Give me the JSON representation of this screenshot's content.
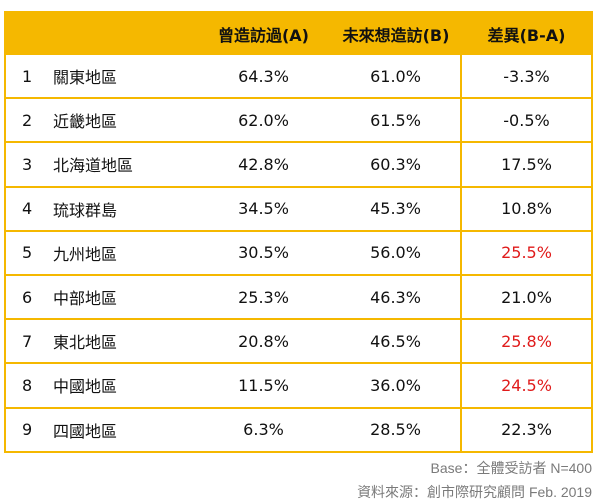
{
  "chart_data": {
    "type": "table",
    "columns": [
      "",
      "",
      "曾造訪過(A)",
      "未來想造訪(B)",
      "差異(B-A)"
    ],
    "rows": [
      {
        "index": "1",
        "region": "關東地區",
        "visited": "64.3%",
        "want": "61.0%",
        "diff": "-3.3%",
        "highlight": false
      },
      {
        "index": "2",
        "region": "近畿地區",
        "visited": "62.0%",
        "want": "61.5%",
        "diff": "-0.5%",
        "highlight": false
      },
      {
        "index": "3",
        "region": "北海道地區",
        "visited": "42.8%",
        "want": "60.3%",
        "diff": "17.5%",
        "highlight": false
      },
      {
        "index": "4",
        "region": "琉球群島",
        "visited": "34.5%",
        "want": "45.3%",
        "diff": "10.8%",
        "highlight": false
      },
      {
        "index": "5",
        "region": "九州地區",
        "visited": "30.5%",
        "want": "56.0%",
        "diff": "25.5%",
        "highlight": true
      },
      {
        "index": "6",
        "region": "中部地區",
        "visited": "25.3%",
        "want": "46.3%",
        "diff": "21.0%",
        "highlight": false
      },
      {
        "index": "7",
        "region": "東北地區",
        "visited": "20.8%",
        "want": "46.5%",
        "diff": "25.8%",
        "highlight": true
      },
      {
        "index": "8",
        "region": "中國地區",
        "visited": "11.5%",
        "want": "36.0%",
        "diff": "24.5%",
        "highlight": true
      },
      {
        "index": "9",
        "region": "四國地區",
        "visited": "6.3%",
        "want": "28.5%",
        "diff": "22.3%",
        "highlight": false
      }
    ]
  },
  "footnotes": {
    "base": "Base：全體受訪者 N=400",
    "source": "資料來源：創市際研究顧問 Feb. 2019"
  },
  "colors": {
    "header_bg": "#f5b800",
    "border": "#f5b800",
    "highlight_text": "#e01b1b",
    "text": "#111111",
    "footnote_text": "#7a7a7a"
  }
}
